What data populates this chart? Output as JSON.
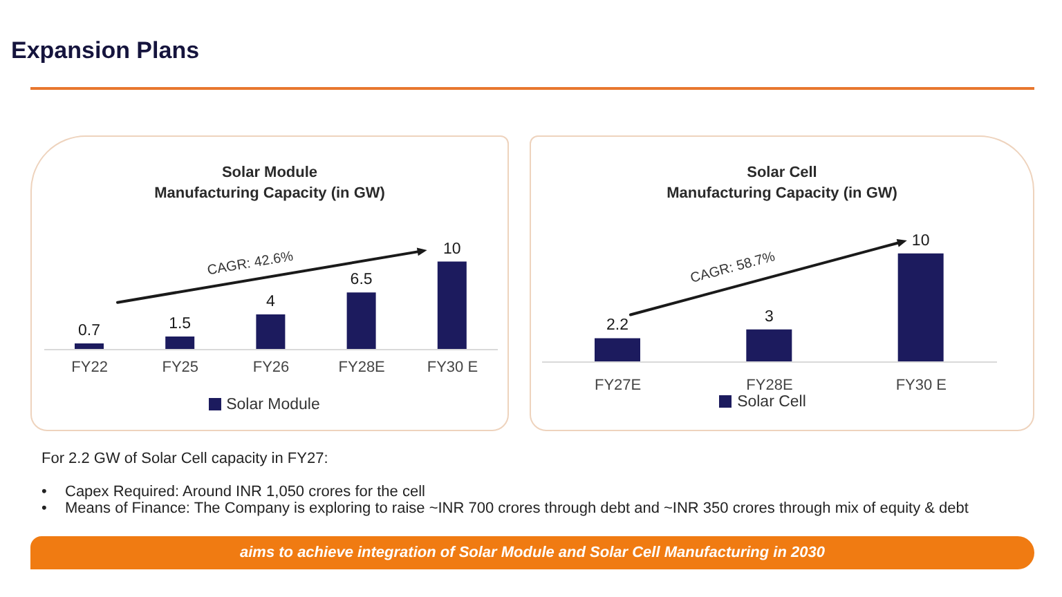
{
  "chart_data": [
    {
      "type": "bar",
      "title": "Solar Module\nManufacturing Capacity (in GW)",
      "categories": [
        "FY22",
        "FY25",
        "FY26",
        "FY28E",
        "FY30 E"
      ],
      "series": [
        {
          "name": "Solar Module",
          "color": "#1c1b5e",
          "values": [
            0.7,
            1.5,
            4,
            6.5,
            10
          ]
        }
      ],
      "tick_labels": "x",
      "data_labels": true,
      "legend": "bottom",
      "annotations": [
        "Expansion Plans",
        "CAGR: 42.6%"
      ]
    },
    {
      "type": "bar",
      "title": "Solar Cell\nManufacturing Capacity (in GW)",
      "categories": [
        "FY27E",
        "FY28E",
        "FY30 E"
      ],
      "series": [
        {
          "name": "Solar Cell",
          "color": "#1c1b5e",
          "values": [
            2.2,
            3,
            10
          ]
        }
      ],
      "tick_labels": "x",
      "data_labels": true,
      "legend": "bottom",
      "annotations": [
        "CAGR: 58.7%",
        "For 2.2 GW of Solar Cell capacity in FY27:",
        "• Capex Required: Around INR 1,050 crores for the cell",
        "• Means of Finance: The Company is exploring to raise ~INR 700 crores through debt and ~INR 350 crores through mix of equity & debt",
        "aims to achieve integration of Solar Module and Solar Cell Manufacturing in 2030"
      ]
    }
  ]
}
